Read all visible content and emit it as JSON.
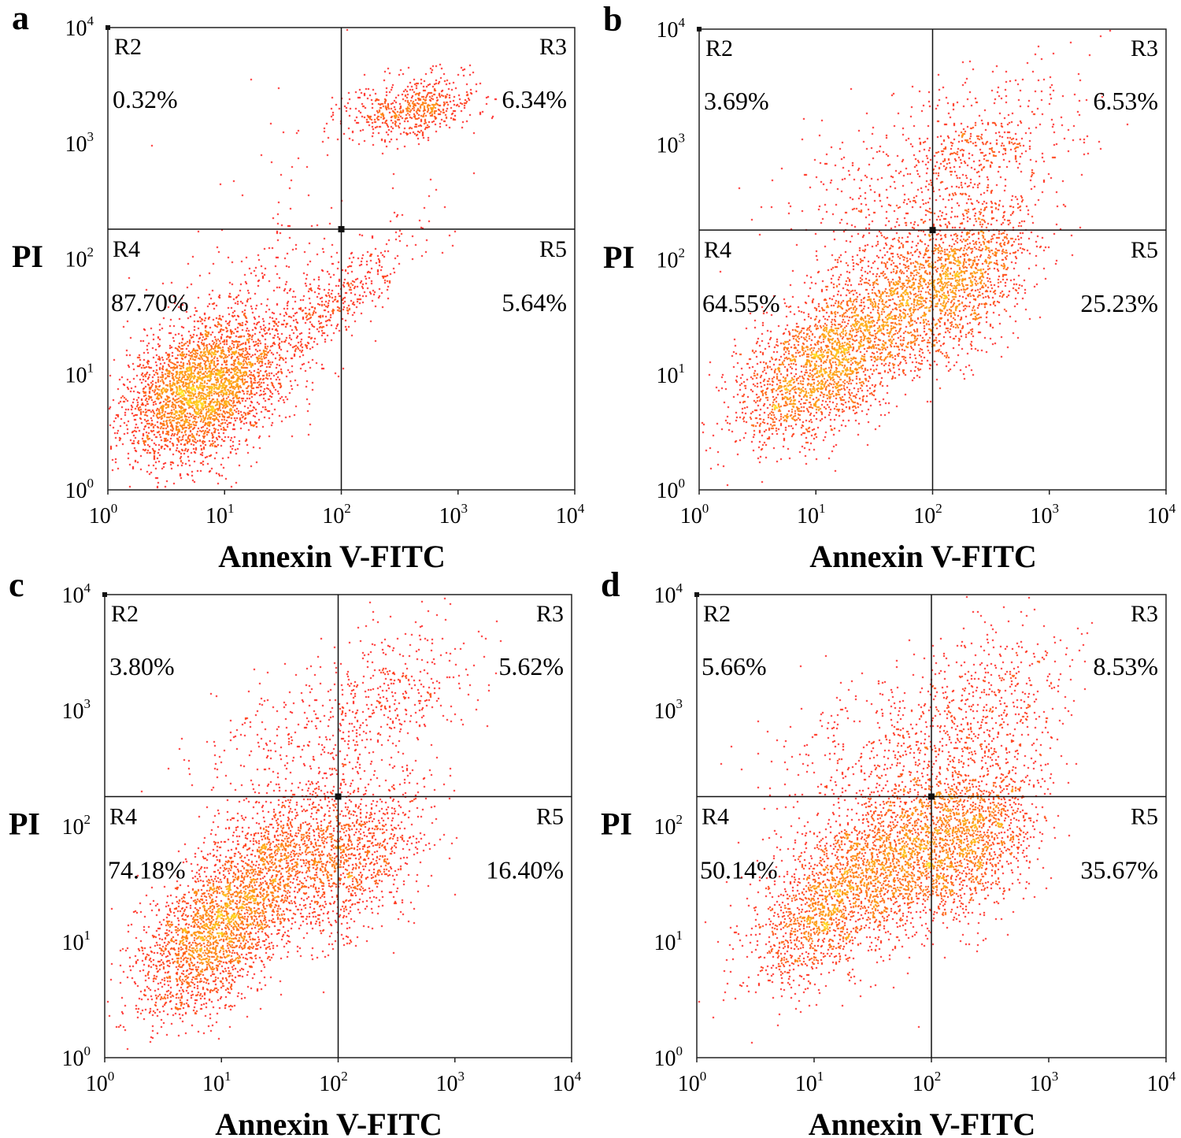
{
  "chart_data": [
    {
      "type": "scatter",
      "panel": "a",
      "xlabel": "Annexin V-FITC",
      "ylabel": "PI",
      "x_scale": "log",
      "y_scale": "log",
      "xlim": [
        1,
        10000
      ],
      "ylim": [
        1,
        10000
      ],
      "x_ticks": [
        {
          "base": "10",
          "exp": "0"
        },
        {
          "base": "10",
          "exp": "1"
        },
        {
          "base": "10",
          "exp": "2"
        },
        {
          "base": "10",
          "exp": "3"
        },
        {
          "base": "10",
          "exp": "4"
        }
      ],
      "y_ticks": [
        {
          "base": "10",
          "exp": "0"
        },
        {
          "base": "10",
          "exp": "1"
        },
        {
          "base": "10",
          "exp": "2"
        },
        {
          "base": "10",
          "exp": "3"
        },
        {
          "base": "10",
          "exp": "4"
        }
      ],
      "gate": {
        "x": 100,
        "y": 180
      },
      "regions": [
        {
          "name": "R2",
          "percent": "0.32%"
        },
        {
          "name": "R3",
          "percent": "6.34%"
        },
        {
          "name": "R4",
          "percent": "87.70%"
        },
        {
          "name": "R5",
          "percent": "5.64%"
        }
      ],
      "clusters": [
        {
          "cx": 6,
          "cy": 7,
          "sx": 0.32,
          "sy": 0.3,
          "rho": 0.3,
          "n": 2400
        },
        {
          "cx": 12,
          "cy": 14,
          "sx": 0.45,
          "sy": 0.45,
          "rho": 0.5,
          "n": 900
        },
        {
          "cx": 100,
          "cy": 45,
          "sx": 0.35,
          "sy": 0.3,
          "rho": 0.85,
          "n": 380
        },
        {
          "cx": 420,
          "cy": 2000,
          "sx": 0.28,
          "sy": 0.14,
          "rho": 0.3,
          "n": 600
        },
        {
          "cx": 60,
          "cy": 500,
          "sx": 0.6,
          "sy": 0.6,
          "rho": 0.2,
          "n": 50
        }
      ]
    },
    {
      "type": "scatter",
      "panel": "b",
      "xlabel": "Annexin V-FITC",
      "ylabel": "PI",
      "x_scale": "log",
      "y_scale": "log",
      "xlim": [
        1,
        10000
      ],
      "ylim": [
        1,
        10000
      ],
      "x_ticks": [
        {
          "base": "10",
          "exp": "0"
        },
        {
          "base": "10",
          "exp": "1"
        },
        {
          "base": "10",
          "exp": "2"
        },
        {
          "base": "10",
          "exp": "3"
        },
        {
          "base": "10",
          "exp": "4"
        }
      ],
      "y_ticks": [
        {
          "base": "10",
          "exp": "0"
        },
        {
          "base": "10",
          "exp": "1"
        },
        {
          "base": "10",
          "exp": "2"
        },
        {
          "base": "10",
          "exp": "3"
        },
        {
          "base": "10",
          "exp": "4"
        }
      ],
      "gate": {
        "x": 100,
        "y": 180
      },
      "regions": [
        {
          "name": "R2",
          "percent": "3.69%"
        },
        {
          "name": "R3",
          "percent": "6.53%"
        },
        {
          "name": "R4",
          "percent": "64.55%"
        },
        {
          "name": "R5",
          "percent": "25.23%"
        }
      ],
      "clusters": [
        {
          "cx": 10,
          "cy": 10,
          "sx": 0.35,
          "sy": 0.32,
          "rho": 0.4,
          "n": 1500
        },
        {
          "cx": 40,
          "cy": 40,
          "sx": 0.45,
          "sy": 0.42,
          "rho": 0.6,
          "n": 1500
        },
        {
          "cx": 180,
          "cy": 60,
          "sx": 0.32,
          "sy": 0.35,
          "rho": 0.5,
          "n": 1100
        },
        {
          "cx": 250,
          "cy": 900,
          "sx": 0.42,
          "sy": 0.38,
          "rho": 0.4,
          "n": 550
        },
        {
          "cx": 25,
          "cy": 400,
          "sx": 0.4,
          "sy": 0.35,
          "rho": 0.2,
          "n": 200
        }
      ]
    },
    {
      "type": "scatter",
      "panel": "c",
      "xlabel": "Annexin V-FITC",
      "ylabel": "PI",
      "x_scale": "log",
      "y_scale": "log",
      "xlim": [
        1,
        10000
      ],
      "ylim": [
        1,
        10000
      ],
      "x_ticks": [
        {
          "base": "10",
          "exp": "0"
        },
        {
          "base": "10",
          "exp": "1"
        },
        {
          "base": "10",
          "exp": "2"
        },
        {
          "base": "10",
          "exp": "3"
        },
        {
          "base": "10",
          "exp": "4"
        }
      ],
      "y_ticks": [
        {
          "base": "10",
          "exp": "0"
        },
        {
          "base": "10",
          "exp": "1"
        },
        {
          "base": "10",
          "exp": "2"
        },
        {
          "base": "10",
          "exp": "3"
        },
        {
          "base": "10",
          "exp": "4"
        }
      ],
      "gate": {
        "x": 100,
        "y": 180
      },
      "regions": [
        {
          "name": "R2",
          "percent": "3.80%"
        },
        {
          "name": "R3",
          "percent": "5.62%"
        },
        {
          "name": "R4",
          "percent": "74.18%"
        },
        {
          "name": "R5",
          "percent": "16.40%"
        }
      ],
      "clusters": [
        {
          "cx": 8,
          "cy": 10,
          "sx": 0.33,
          "sy": 0.35,
          "rho": 0.5,
          "n": 1800
        },
        {
          "cx": 30,
          "cy": 45,
          "sx": 0.42,
          "sy": 0.4,
          "rho": 0.6,
          "n": 1500
        },
        {
          "cx": 150,
          "cy": 50,
          "sx": 0.32,
          "sy": 0.35,
          "rho": 0.5,
          "n": 800
        },
        {
          "cx": 250,
          "cy": 1200,
          "sx": 0.38,
          "sy": 0.35,
          "rho": 0.4,
          "n": 450
        },
        {
          "cx": 25,
          "cy": 450,
          "sx": 0.4,
          "sy": 0.35,
          "rho": 0.2,
          "n": 200
        }
      ]
    },
    {
      "type": "scatter",
      "panel": "d",
      "xlabel": "Annexin V-FITC",
      "ylabel": "PI",
      "x_scale": "log",
      "y_scale": "log",
      "xlim": [
        1,
        10000
      ],
      "ylim": [
        1,
        10000
      ],
      "x_ticks": [
        {
          "base": "10",
          "exp": "0"
        },
        {
          "base": "10",
          "exp": "1"
        },
        {
          "base": "10",
          "exp": "2"
        },
        {
          "base": "10",
          "exp": "3"
        },
        {
          "base": "10",
          "exp": "4"
        }
      ],
      "y_ticks": [
        {
          "base": "10",
          "exp": "0"
        },
        {
          "base": "10",
          "exp": "1"
        },
        {
          "base": "10",
          "exp": "2"
        },
        {
          "base": "10",
          "exp": "3"
        },
        {
          "base": "10",
          "exp": "4"
        }
      ],
      "gate": {
        "x": 100,
        "y": 180
      },
      "regions": [
        {
          "name": "R2",
          "percent": "5.66%"
        },
        {
          "name": "R3",
          "percent": "8.53%"
        },
        {
          "name": "R4",
          "percent": "50.14%"
        },
        {
          "name": "R5",
          "percent": "35.67%"
        }
      ],
      "clusters": [
        {
          "cx": 12,
          "cy": 18,
          "sx": 0.35,
          "sy": 0.35,
          "rho": 0.5,
          "n": 1200
        },
        {
          "cx": 45,
          "cy": 60,
          "sx": 0.4,
          "sy": 0.4,
          "rho": 0.5,
          "n": 1500
        },
        {
          "cx": 200,
          "cy": 70,
          "sx": 0.32,
          "sy": 0.36,
          "rho": 0.4,
          "n": 1400
        },
        {
          "cx": 250,
          "cy": 1000,
          "sx": 0.42,
          "sy": 0.38,
          "rho": 0.4,
          "n": 600
        },
        {
          "cx": 25,
          "cy": 450,
          "sx": 0.4,
          "sy": 0.35,
          "rho": 0.2,
          "n": 250
        }
      ]
    }
  ]
}
